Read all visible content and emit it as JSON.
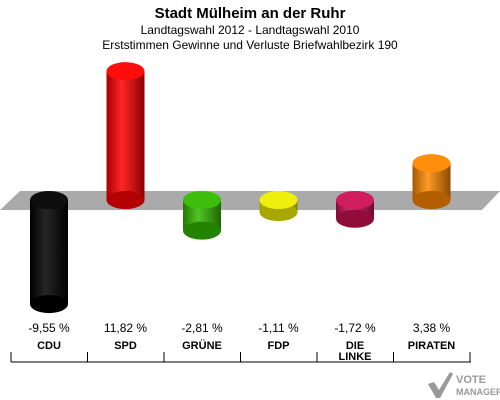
{
  "header": {
    "title": "Stadt Mülheim an der Ruhr",
    "subtitle1": "Landtagswahl 2012 - Landtagswahl 2010",
    "subtitle2": "Erststimmen Gewinne und Verluste Briefwahlbezirk 190"
  },
  "chart_data": {
    "type": "bar",
    "title": "Stadt Mülheim an der Ruhr",
    "subtitle": "Landtagswahl 2012 - Landtagswahl 2010 · Erststimmen Gewinne und Verluste Briefwahlbezirk 190",
    "categories": [
      "CDU",
      "SPD",
      "GRÜNE",
      "FDP",
      "DIE LINKE",
      "PIRATEN"
    ],
    "values": [
      -9.55,
      11.82,
      -2.81,
      -1.11,
      -1.72,
      3.38
    ],
    "value_labels": [
      "-9,55 %",
      "11,82 %",
      "-2,81 %",
      "-1,11 %",
      "-1,72 %",
      "3,38 %"
    ],
    "colors": [
      "#000000",
      "#ff0000",
      "#33bb00",
      "#eeee00",
      "#cc1155",
      "#ff8800"
    ],
    "xlabel": "",
    "ylabel": "",
    "legend": "none",
    "grid": false
  },
  "footer": {
    "logo_line1": "VOTE",
    "logo_line2": "MANAGER"
  }
}
